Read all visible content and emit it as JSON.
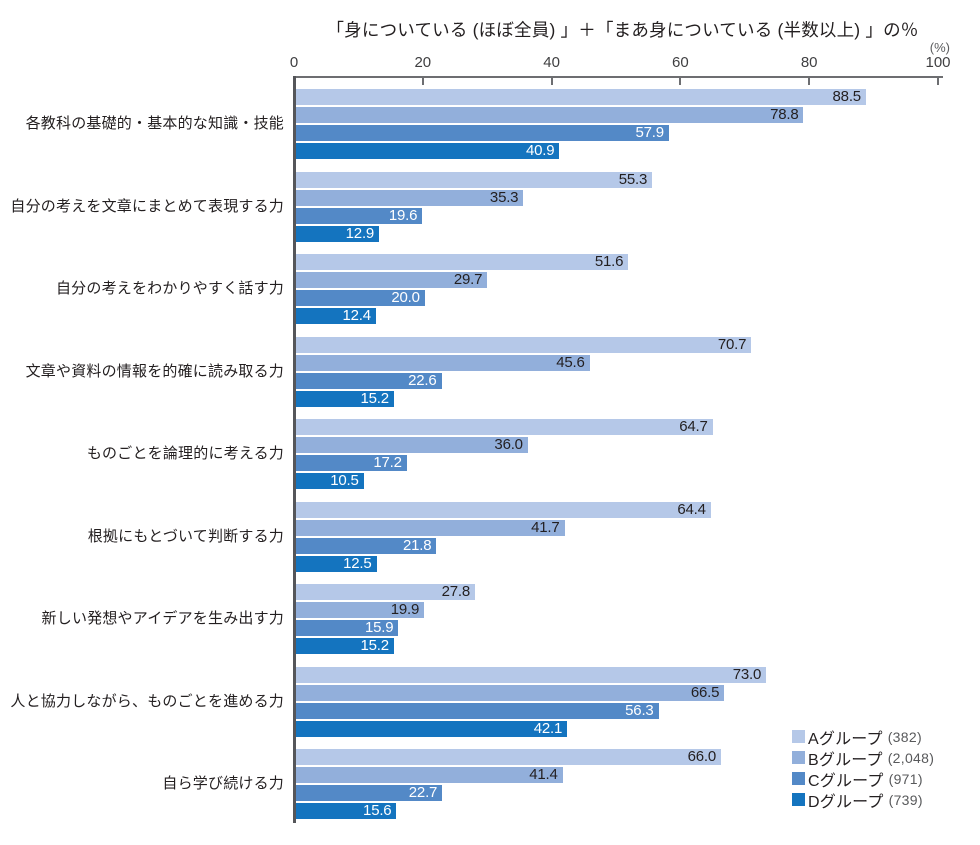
{
  "title": "「身についている (ほぼ全員) 」＋「まあ身についている (半数以上) 」の％",
  "unit_label": "(%)",
  "chart_data": {
    "type": "bar",
    "orientation": "horizontal",
    "title": "「身についている (ほぼ全員) 」＋「まあ身についている (半数以上) 」の％",
    "xlabel": "(%)",
    "xlim": [
      0,
      100
    ],
    "x_ticks": [
      0,
      20,
      40,
      60,
      80,
      100
    ],
    "grid": false,
    "legend_position": "bottom-right",
    "categories": [
      "各教科の基礎的・基本的な知識・技能",
      "自分の考えを文章にまとめて表現する力",
      "自分の考えをわかりやすく話す力",
      "文章や資料の情報を的確に読み取る力",
      "ものごとを論理的に考える力",
      "根拠にもとづいて判断する力",
      "新しい発想やアイデアを生み出す力",
      "人と協力しながら、ものごとを進める力",
      "自ら学び続ける力"
    ],
    "series": [
      {
        "name": "Aグループ",
        "count": "(382)",
        "color": "#b5c8e8",
        "label_color": "#231f20",
        "values": [
          88.5,
          55.3,
          51.6,
          70.7,
          64.7,
          64.4,
          27.8,
          73.0,
          66.0
        ]
      },
      {
        "name": "Bグループ",
        "count": "(2,048)",
        "color": "#92afdb",
        "label_color": "#231f20",
        "values": [
          78.8,
          35.3,
          29.7,
          45.6,
          36.0,
          41.7,
          19.9,
          66.5,
          41.4
        ]
      },
      {
        "name": "Cグループ",
        "count": "(971)",
        "color": "#5389c7",
        "label_color": "#ffffff",
        "values": [
          57.9,
          19.6,
          20.0,
          22.6,
          17.2,
          21.8,
          15.9,
          56.3,
          22.7
        ]
      },
      {
        "name": "Dグループ",
        "count": "(739)",
        "color": "#1474bf",
        "label_color": "#ffffff",
        "values": [
          40.9,
          12.9,
          12.4,
          15.2,
          10.5,
          12.5,
          15.2,
          42.1,
          15.6
        ]
      }
    ]
  }
}
